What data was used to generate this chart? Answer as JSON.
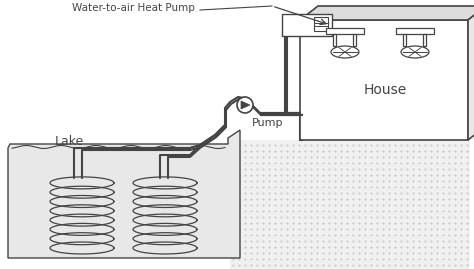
{
  "bg_color": "#ffffff",
  "lc": "#444444",
  "title": "Water-to-air Heat Pump",
  "label_lake": "Lake",
  "label_pump": "Pump",
  "label_house": "House",
  "figsize": [
    4.74,
    2.69
  ],
  "dpi": 100
}
